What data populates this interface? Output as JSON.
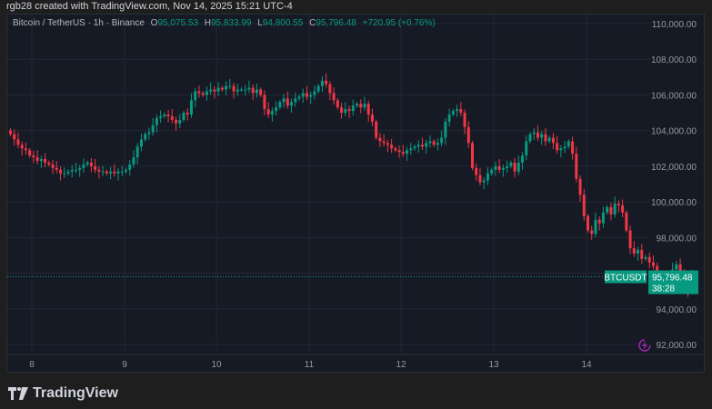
{
  "credit": "rgb28 created with TradingView.com, Nov 14, 2025 15:21 UTC-4",
  "legend": {
    "symbol_label": "Bitcoin / TetherUS · 1h · Binance",
    "open_key": "O",
    "open": "95,075.53",
    "high_key": "H",
    "high": "95,833.99",
    "low_key": "L",
    "low": "94,800.55",
    "close_key": "C",
    "close": "95,796.48",
    "change": "+720.95 (+0.76%)"
  },
  "price_label": {
    "symbol": "BTCUSDT",
    "price": "95,796.48",
    "countdown": "38:28"
  },
  "footer": {
    "brand": "TradingView"
  },
  "colors": {
    "up": "#089981",
    "down": "#f23645",
    "bg": "#161a25",
    "grid": "#232734",
    "axis_text": "#9598a1",
    "badge": "#089981",
    "alert_icon": "#9c27b0"
  },
  "chart_data": {
    "type": "candlestick",
    "title": "Bitcoin / TetherUS · 1h · Binance",
    "xlabel": "",
    "ylabel": "",
    "x_ticks": [
      "8",
      "9",
      "10",
      "11",
      "12",
      "13",
      "14"
    ],
    "y_ticks": [
      "110,000.00",
      "108,000.00",
      "106,000.00",
      "104,000.00",
      "102,000.00",
      "100,000.00",
      "98,000.00",
      "96,000.00",
      "94,000.00",
      "92,000.00"
    ],
    "ylim": [
      91500,
      110600
    ],
    "grid": true,
    "last_price": 95796.48,
    "path_hourly_close_approx": [
      103800,
      103500,
      103200,
      103000,
      102900,
      102600,
      102500,
      102300,
      102400,
      102200,
      102100,
      101900,
      101800,
      101600,
      101600,
      101700,
      101800,
      101800,
      101900,
      102100,
      102200,
      102000,
      101800,
      101700,
      101700,
      101600,
      101700,
      101600,
      101700,
      101700,
      101800,
      102100,
      102500,
      103100,
      103500,
      103800,
      103900,
      104300,
      104700,
      104800,
      104900,
      104800,
      104600,
      104400,
      104600,
      105000,
      104900,
      105700,
      106200,
      106100,
      106000,
      106200,
      106300,
      106200,
      106400,
      106300,
      106500,
      106500,
      106200,
      106300,
      106300,
      106300,
      106400,
      106100,
      106300,
      106000,
      105200,
      104900,
      105100,
      105300,
      105600,
      105800,
      105400,
      105600,
      105800,
      105900,
      106100,
      105900,
      106000,
      106200,
      106500,
      106800,
      106600,
      106100,
      105700,
      105300,
      105000,
      105200,
      105100,
      105400,
      105500,
      105300,
      105500,
      104900,
      104500,
      103600,
      103400,
      103300,
      103200,
      103000,
      102900,
      102800,
      102700,
      102900,
      103000,
      103100,
      103200,
      103100,
      103300,
      103400,
      103200,
      103300,
      103600,
      104500,
      104900,
      105100,
      105200,
      105000,
      104200,
      103300,
      101900,
      101500,
      101100,
      101200,
      101600,
      101800,
      102000,
      101800,
      101900,
      102000,
      102200,
      101700,
      102200,
      102600,
      103400,
      103800,
      103900,
      103600,
      103800,
      103400,
      103600,
      103300,
      102900,
      103000,
      103100,
      103400,
      102700,
      101300,
      100400,
      99200,
      98400,
      98200,
      99000,
      98800,
      99400,
      99700,
      99300,
      99900,
      99800,
      99400,
      98400,
      97400,
      97100,
      97300,
      96800,
      96900,
      96600,
      96400,
      95800,
      95600,
      95200,
      95400,
      96200,
      96500,
      96100,
      95300,
      95000,
      95796
    ]
  }
}
